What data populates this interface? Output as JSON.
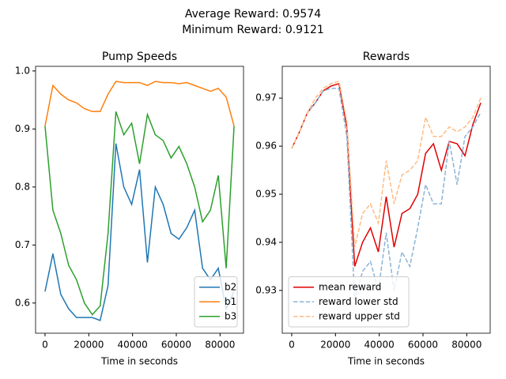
{
  "figure": {
    "title_lines": [
      "Average Reward: 0.9574",
      "Minimum Reward: 0.9121"
    ]
  },
  "chart_data": [
    {
      "type": "line",
      "title": "Pump Speeds",
      "x_label": "Time in seconds",
      "x": [
        0,
        3600,
        7200,
        10800,
        14400,
        18000,
        21600,
        25200,
        28800,
        32400,
        36000,
        39600,
        43200,
        46800,
        50400,
        54000,
        57600,
        61200,
        64800,
        68400,
        72000,
        75600,
        79200,
        82800,
        86400
      ],
      "series": [
        {
          "name": "b2",
          "color": "#1f77b4",
          "dashed": false,
          "values": [
            0.62,
            0.685,
            0.615,
            0.59,
            0.575,
            0.575,
            0.575,
            0.57,
            0.63,
            0.875,
            0.8,
            0.77,
            0.83,
            0.67,
            0.8,
            0.77,
            0.72,
            0.71,
            0.73,
            0.76,
            0.66,
            0.64,
            0.66,
            0.59,
            0.62
          ]
        },
        {
          "name": "b1",
          "color": "#ff7f0e",
          "dashed": false,
          "values": [
            0.905,
            0.975,
            0.96,
            0.95,
            0.945,
            0.935,
            0.93,
            0.93,
            0.96,
            0.982,
            0.98,
            0.98,
            0.98,
            0.975,
            0.982,
            0.98,
            0.98,
            0.978,
            0.98,
            0.975,
            0.97,
            0.965,
            0.97,
            0.955,
            0.905
          ]
        },
        {
          "name": "b3",
          "color": "#2ca02c",
          "dashed": false,
          "values": [
            0.905,
            0.76,
            0.72,
            0.665,
            0.64,
            0.6,
            0.58,
            0.595,
            0.72,
            0.93,
            0.89,
            0.91,
            0.84,
            0.925,
            0.89,
            0.88,
            0.85,
            0.87,
            0.84,
            0.8,
            0.74,
            0.76,
            0.82,
            0.66,
            0.905
          ]
        }
      ],
      "xlim": [
        -4320,
        90720
      ],
      "xticks": [
        0,
        20000,
        40000,
        60000,
        80000
      ],
      "ylim": [
        0.548,
        1.008
      ],
      "yticks": [
        0.6,
        0.7,
        0.8,
        0.9,
        {
          "value": 1,
          "label": "1.0"
        }
      ],
      "legend": "lower right"
    },
    {
      "type": "line",
      "title": "Rewards",
      "x_label": "Time in seconds",
      "x": [
        0,
        3600,
        7200,
        10800,
        14400,
        18000,
        21600,
        25200,
        28800,
        32400,
        36000,
        39600,
        43200,
        46800,
        50400,
        54000,
        57600,
        61200,
        64800,
        68400,
        72000,
        75600,
        79200,
        82800,
        86400
      ],
      "series": [
        {
          "name": "mean reward",
          "color": "#e00000",
          "dashed": false,
          "values": [
            0.9595,
            0.963,
            0.967,
            0.969,
            0.9715,
            0.9725,
            0.973,
            0.964,
            0.935,
            0.94,
            0.943,
            0.938,
            0.9495,
            0.939,
            0.946,
            0.947,
            0.95,
            0.9585,
            0.9605,
            0.955,
            0.961,
            0.9605,
            0.958,
            0.9645,
            0.969
          ]
        },
        {
          "name": "reward lower std",
          "color": "#8ab4d7",
          "dashed": true,
          "values": [
            0.9595,
            0.963,
            0.967,
            0.969,
            0.9715,
            0.972,
            0.972,
            0.962,
            0.928,
            0.934,
            0.936,
            0.93,
            0.942,
            0.93,
            0.938,
            0.935,
            0.943,
            0.952,
            0.948,
            0.948,
            0.961,
            0.952,
            0.962,
            0.964,
            0.967
          ]
        },
        {
          "name": "reward upper std",
          "color": "#ffbb82",
          "dashed": true,
          "values": [
            0.9595,
            0.963,
            0.967,
            0.97,
            0.972,
            0.973,
            0.9735,
            0.965,
            0.939,
            0.946,
            0.948,
            0.944,
            0.957,
            0.948,
            0.954,
            0.955,
            0.957,
            0.966,
            0.962,
            0.962,
            0.964,
            0.963,
            0.964,
            0.966,
            0.97
          ]
        }
      ],
      "xlim": [
        -4320,
        90720
      ],
      "xticks": [
        0,
        20000,
        40000,
        60000,
        80000
      ],
      "ylim": [
        0.9211,
        0.9766
      ],
      "yticks": [
        0.93,
        0.94,
        0.95,
        0.96,
        0.97
      ],
      "legend": "lower left"
    }
  ]
}
